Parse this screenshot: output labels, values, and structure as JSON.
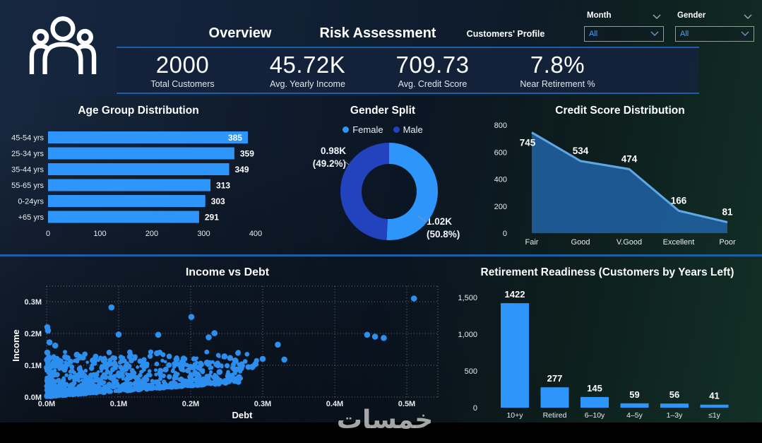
{
  "header": {
    "tabs": [
      {
        "label": "Overview"
      },
      {
        "label": "Risk Assessment"
      },
      {
        "label": "Customers' Profile"
      }
    ],
    "slicers": [
      {
        "label": "Month",
        "value": "All"
      },
      {
        "label": "Gender",
        "value": "All"
      }
    ],
    "kpis": [
      {
        "value": "2000",
        "label": "Total Customers"
      },
      {
        "value": "45.72K",
        "label": "Avg. Yearly Income"
      },
      {
        "value": "709.73",
        "label": "Avg. Credit Score"
      },
      {
        "value": "7.8%",
        "label": "Near Retirement %"
      }
    ]
  },
  "colors": {
    "accent_line": "#1D5FA6",
    "primary_blue": "#2E96FB",
    "male_blue": "#2342BE",
    "area_fill": "#1F5C99",
    "area_line": "#5CA9E6",
    "slicer_value": "#4EA3F7",
    "watermark_gray": "#BDBDBD"
  },
  "watermark": "خمسات",
  "chart_data": [
    {
      "type": "bar",
      "orientation": "horizontal",
      "title": "Age Group Distribution",
      "categories": [
        "45-54 yrs",
        "25-34 yrs",
        "35-44 yrs",
        "55-65 yrs",
        "0-24yrs",
        "+65 yrs"
      ],
      "values": [
        385,
        359,
        349,
        313,
        303,
        291
      ],
      "xlim": [
        0,
        400
      ],
      "xticks": [
        0,
        100,
        200,
        300,
        400
      ],
      "value_labels": [
        "385",
        "359",
        "349",
        "313",
        "303",
        "291"
      ]
    },
    {
      "type": "pie",
      "title": "Gender Split",
      "legend": [
        "Female",
        "Male"
      ],
      "slices": [
        {
          "label": "Female",
          "value_label": "1.02K",
          "pct_label": "(50.8%)",
          "pct": 50.8
        },
        {
          "label": "Male",
          "value_label": "0.98K",
          "pct_label": "(49.2%)",
          "pct": 49.2
        }
      ]
    },
    {
      "type": "area",
      "title": "Credit Score Distribution",
      "categories": [
        "Fair",
        "Good",
        "V.Good",
        "Excellent",
        "Poor"
      ],
      "values": [
        745,
        534,
        474,
        166,
        81
      ],
      "value_labels": [
        "745",
        "534",
        "474",
        "166",
        "81"
      ],
      "ylim": [
        0,
        800
      ],
      "yticks": [
        0,
        200,
        400,
        600,
        800
      ]
    },
    {
      "type": "scatter",
      "title": "Income vs Debt",
      "xlabel": "Debt",
      "ylabel": "Income",
      "xlim": [
        0,
        0.543
      ],
      "ylim": [
        0,
        0.349
      ],
      "xticks": {
        "values": [
          0,
          0.1,
          0.2,
          0.3,
          0.4,
          0.5
        ],
        "labels": [
          "0.0M",
          "0.1M",
          "0.2M",
          "0.3M",
          "0.4M",
          "0.5M"
        ]
      },
      "yticks": {
        "values": [
          0,
          0.1,
          0.2,
          0.3
        ],
        "labels": [
          "0.0M",
          "0.1M",
          "0.2M",
          "0.3M"
        ]
      },
      "grid": "dotted",
      "cluster": {
        "count": 900,
        "x_max": 0.27,
        "y_top": 0.105
      },
      "band": {
        "count": 80,
        "x_max": 0.3,
        "y_range": [
          0.092,
          0.142
        ]
      },
      "left_column": {
        "count": 25,
        "x_max": 0.006,
        "y_range": [
          0.02,
          0.14
        ]
      },
      "outliers": [
        [
          0.51,
          0.31
        ],
        [
          0.09,
          0.282
        ],
        [
          0.201,
          0.252
        ],
        [
          0.233,
          0.201
        ],
        [
          0.225,
          0.188
        ],
        [
          0.155,
          0.196
        ],
        [
          0.1,
          0.197
        ],
        [
          0.445,
          0.196
        ],
        [
          0.456,
          0.19
        ],
        [
          0.468,
          0.186
        ],
        [
          0.321,
          0.165
        ],
        [
          0.001,
          0.22
        ],
        [
          0.002,
          0.209
        ],
        [
          0.004,
          0.172
        ],
        [
          0.012,
          0.162
        ],
        [
          0.001,
          0.14
        ],
        [
          0.042,
          0.133
        ],
        [
          0.247,
          0.128
        ],
        [
          0.262,
          0.115
        ],
        [
          0.3,
          0.12
        ],
        [
          0.33,
          0.118
        ],
        [
          0.29,
          0.104
        ],
        [
          0.24,
          0.079
        ],
        [
          0.252,
          0.066
        ],
        [
          0.258,
          0.06
        ],
        [
          0.27,
          0.09
        ],
        [
          0.286,
          0.096
        ]
      ]
    },
    {
      "type": "bar",
      "orientation": "vertical",
      "title": "Retirement Readiness (Customers by Years Left)",
      "categories": [
        "10+y",
        "Retired",
        "6–10y",
        "4–5y",
        "1–3y",
        "≤1y"
      ],
      "values": [
        1422,
        277,
        145,
        59,
        56,
        41
      ],
      "value_labels": [
        "1422",
        "277",
        "145",
        "59",
        "56",
        "41"
      ],
      "ylim": [
        0,
        1500
      ],
      "yticks": [
        0,
        500,
        1000,
        1500
      ],
      "ytick_labels": [
        "0",
        "500",
        "1,000",
        "1,500"
      ]
    }
  ]
}
